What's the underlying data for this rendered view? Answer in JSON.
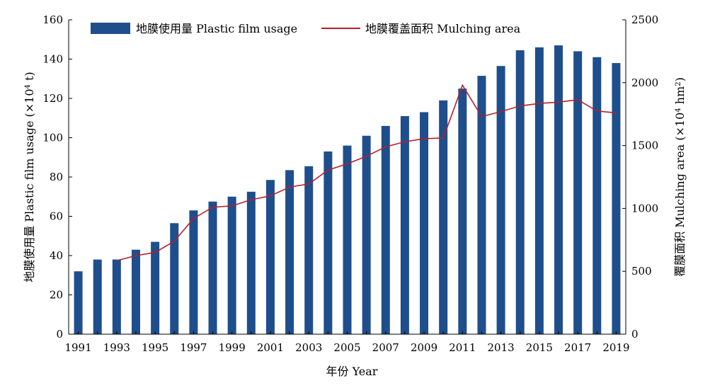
{
  "chart_data": {
    "type": "bar",
    "categories": [
      "1991",
      "1992",
      "1993",
      "1994",
      "1995",
      "1996",
      "1997",
      "1998",
      "1999",
      "2000",
      "2001",
      "2002",
      "2003",
      "2004",
      "2005",
      "2006",
      "2007",
      "2008",
      "2009",
      "2010",
      "2011",
      "2012",
      "2013",
      "2014",
      "2015",
      "2016",
      "2017",
      "2018",
      "2019"
    ],
    "x_tick_labels": [
      "1991",
      "1993",
      "1995",
      "1997",
      "1999",
      "2001",
      "2003",
      "2005",
      "2007",
      "2009",
      "2011",
      "2013",
      "2015",
      "2017",
      "2019"
    ],
    "series": [
      {
        "name": "地膜使用量 Plastic film usage",
        "type": "bar",
        "axis": "left",
        "color": "#1f4e8c",
        "values": [
          32,
          38,
          38,
          43,
          47,
          56.5,
          63,
          67.5,
          70,
          72.5,
          78.5,
          83.5,
          85.5,
          93,
          96,
          101,
          106,
          111,
          113,
          119,
          125,
          131.5,
          136.5,
          144.5,
          146,
          147,
          144,
          141,
          138
        ]
      },
      {
        "name": "地膜覆盖面积 Mulching area",
        "type": "line",
        "axis": "right",
        "color": "#b5202b",
        "values": [
          null,
          null,
          585,
          625,
          650,
          740,
          920,
          1010,
          1020,
          1070,
          1100,
          1170,
          1195,
          1305,
          1355,
          1415,
          1490,
          1530,
          1555,
          1560,
          1980,
          1730,
          1770,
          1815,
          1835,
          1845,
          1865,
          1775,
          1760
        ]
      }
    ],
    "xlabel": "年份 Year",
    "ylabel_left": "地膜使用量 Plastic film usage (×10",
    "ylabel_left_sup": "4",
    "ylabel_left_tail": " t)",
    "ylabel_right": "覆膜面积 Mulching area (×10",
    "ylabel_right_sup": "4",
    "ylabel_right_mid": " hm",
    "ylabel_right_sup2": "2",
    "ylabel_right_tail": ")",
    "ylim_left": [
      0,
      160
    ],
    "ylim_right": [
      0,
      2500
    ],
    "yticks_left": [
      0,
      20,
      40,
      60,
      80,
      100,
      120,
      140,
      160
    ],
    "yticks_right": [
      0,
      500,
      1000,
      1500,
      2000,
      2500
    ],
    "grid": false,
    "legend_position": "top-left"
  }
}
